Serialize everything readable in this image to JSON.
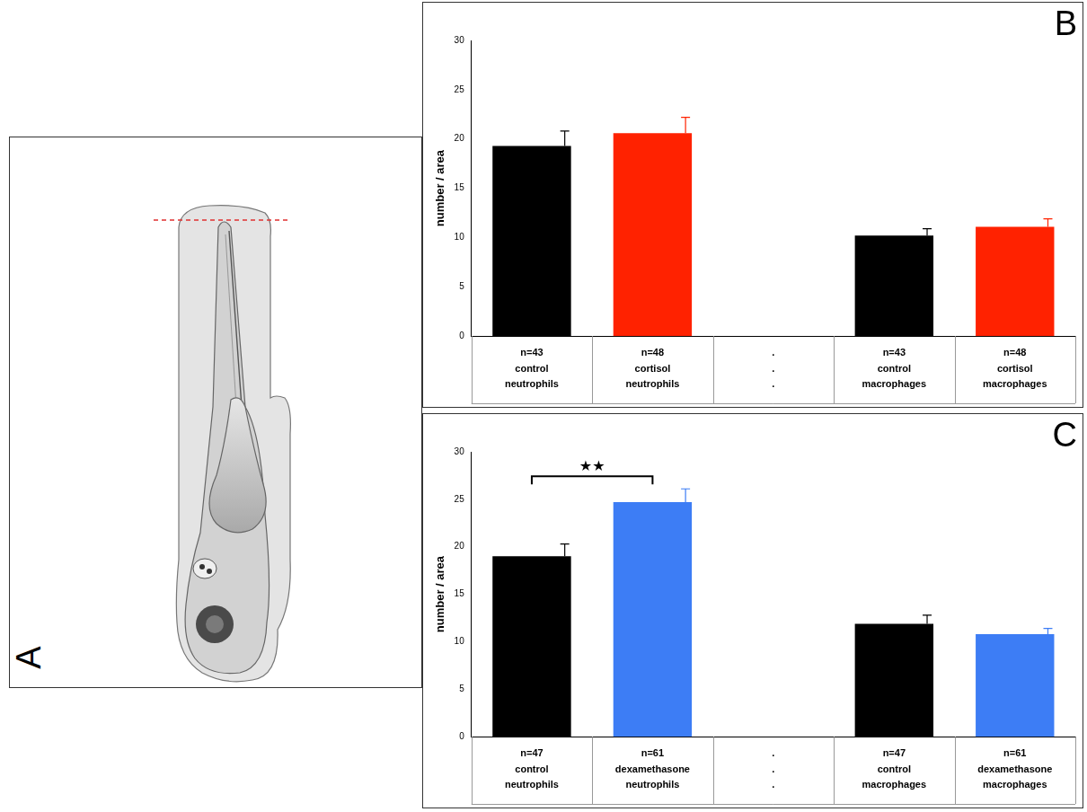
{
  "diagram": {
    "panel_label": "A"
  },
  "chart_data": [
    {
      "panel_label": "B",
      "type": "bar",
      "categories": [
        [
          "n=43",
          "control",
          "neutrophils"
        ],
        [
          "n=48",
          "cortisol",
          "neutrophils"
        ],
        [
          ".",
          ".",
          "."
        ],
        [
          "n=43",
          "control",
          "macrophages"
        ],
        [
          "n=48",
          "cortisol",
          "macrophages"
        ]
      ],
      "values": [
        19.3,
        20.6,
        null,
        10.2,
        11.1
      ],
      "errors": [
        1.5,
        1.6,
        null,
        0.7,
        0.8
      ],
      "colors": [
        "#000000",
        "#ff2200",
        null,
        "#000000",
        "#ff2200"
      ],
      "y_label": "number / area",
      "ylim": [
        0,
        30
      ],
      "yticks": [
        0,
        5,
        10,
        15,
        20,
        25,
        30
      ],
      "grid": false
    },
    {
      "panel_label": "C",
      "type": "bar",
      "categories": [
        [
          "n=47",
          "control",
          "neutrophils"
        ],
        [
          "n=61",
          "dexamethasone",
          "neutrophils"
        ],
        [
          ".",
          ".",
          "."
        ],
        [
          "n=47",
          "control",
          "macrophages"
        ],
        [
          "n=61",
          "dexamethasone",
          "macrophages"
        ]
      ],
      "values": [
        19.0,
        24.7,
        null,
        11.9,
        10.8
      ],
      "errors": [
        1.3,
        1.4,
        null,
        0.9,
        0.6
      ],
      "colors": [
        "#000000",
        "#3d7df5",
        null,
        "#000000",
        "#3d7df5"
      ],
      "y_label": "number / area",
      "ylim": [
        0,
        30
      ],
      "yticks": [
        0,
        5,
        10,
        15,
        20,
        25,
        30
      ],
      "grid": false,
      "annotations": [
        {
          "text": "★★",
          "from": 0,
          "to": 1
        }
      ]
    }
  ]
}
